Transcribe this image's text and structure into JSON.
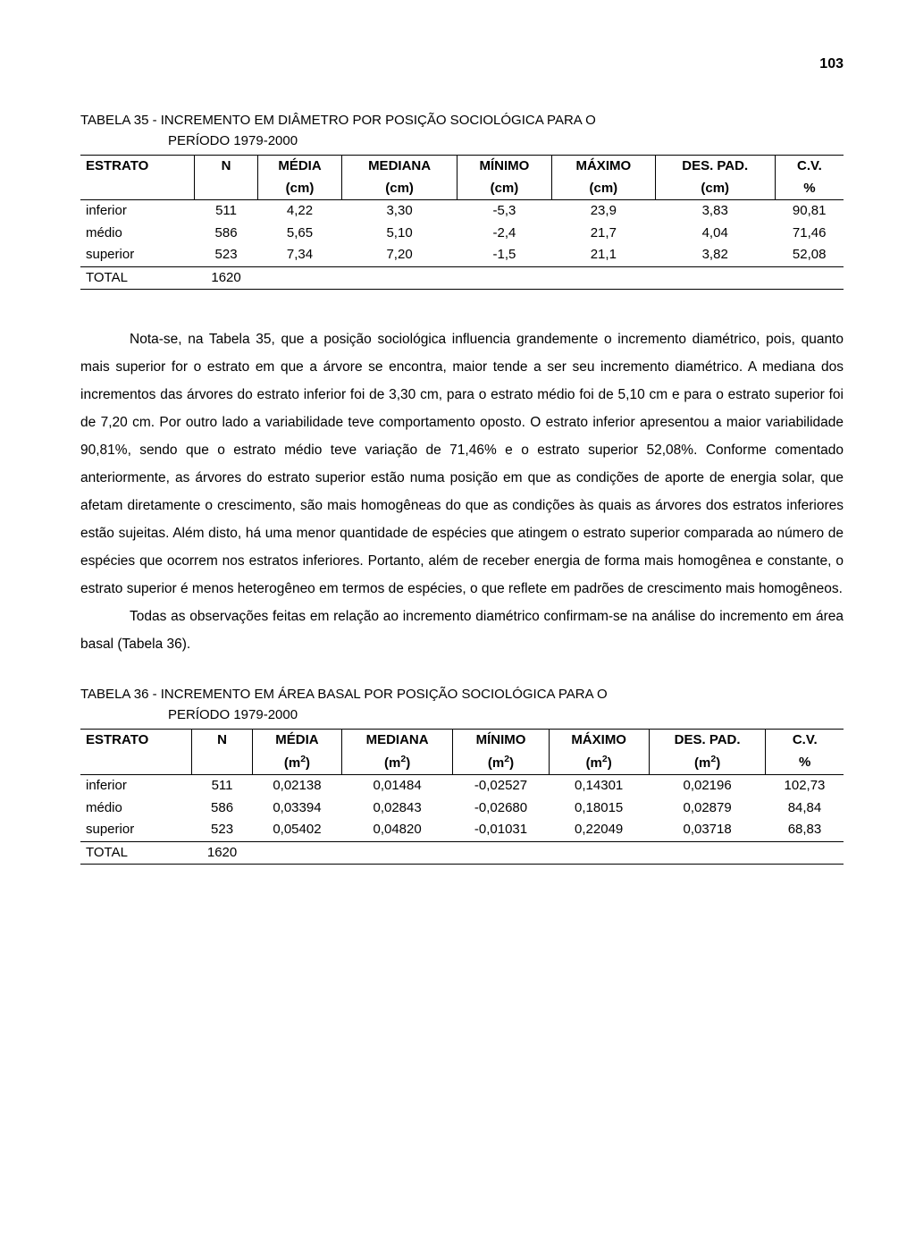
{
  "page_number": "103",
  "table35": {
    "title_label": "TABELA 35 - ",
    "title_text": "INCREMENTO EM DIÂMETRO POR POSIÇÃO SOCIOLÓGICA PARA O",
    "title_sub": "PERÍODO 1979-2000",
    "headers_row1": [
      "ESTRATO",
      "N",
      "MÉDIA",
      "MEDIANA",
      "MÍNIMO",
      "MÁXIMO",
      "DES. PAD.",
      "C.V."
    ],
    "headers_row2": [
      "",
      "",
      "(cm)",
      "(cm)",
      "(cm)",
      "(cm)",
      "(cm)",
      "%"
    ],
    "rows": [
      [
        "inferior",
        "511",
        "4,22",
        "3,30",
        "-5,3",
        "23,9",
        "3,83",
        "90,81"
      ],
      [
        "médio",
        "586",
        "5,65",
        "5,10",
        "-2,4",
        "21,7",
        "4,04",
        "71,46"
      ],
      [
        "superior",
        "523",
        "7,34",
        "7,20",
        "-1,5",
        "21,1",
        "3,82",
        "52,08"
      ]
    ],
    "total_label": "TOTAL",
    "total_n": "1620"
  },
  "paragraph1": "Nota-se, na Tabela 35, que a posição sociológica influencia grandemente o incremento diamétrico, pois, quanto mais superior for o estrato em que a árvore se encontra, maior tende a ser seu incremento diamétrico. A mediana dos incrementos das árvores do estrato inferior foi de 3,30 cm, para o estrato médio foi de 5,10 cm e para o estrato superior foi de 7,20 cm. Por outro lado a variabilidade teve comportamento oposto. O estrato inferior apresentou a maior variabilidade 90,81%, sendo que o estrato médio teve variação de 71,46% e o estrato superior 52,08%. Conforme comentado anteriormente, as árvores do estrato superior estão numa posição em que as condições de aporte de energia solar, que afetam diretamente o crescimento, são mais homogêneas do que as condições às quais as árvores dos estratos inferiores estão sujeitas. Além disto, há uma menor quantidade de espécies que atingem o estrato superior comparada ao número de espécies que ocorrem nos estratos inferiores. Portanto, além de receber energia de forma mais homogênea e constante, o estrato superior é menos heterogêneo em termos de espécies, o que reflete em padrões de crescimento mais homogêneos.",
  "paragraph2": "Todas as observações feitas em relação ao incremento diamétrico confirmam-se na análise do incremento em área basal (Tabela 36).",
  "table36": {
    "title_label": "TABELA 36 - ",
    "title_text": "INCREMENTO EM ÁREA BASAL POR POSIÇÃO SOCIOLÓGICA PARA O",
    "title_sub": "PERÍODO 1979-2000",
    "headers_row1": [
      "ESTRATO",
      "N",
      "MÉDIA",
      "MEDIANA",
      "MÍNIMO",
      "MÁXIMO",
      "DES. PAD.",
      "C.V."
    ],
    "unit": "(m²)",
    "rows": [
      [
        "inferior",
        "511",
        "0,02138",
        "0,01484",
        "-0,02527",
        "0,14301",
        "0,02196",
        "102,73"
      ],
      [
        "médio",
        "586",
        "0,03394",
        "0,02843",
        "-0,02680",
        "0,18015",
        "0,02879",
        "84,84"
      ],
      [
        "superior",
        "523",
        "0,05402",
        "0,04820",
        "-0,01031",
        "0,22049",
        "0,03718",
        "68,83"
      ]
    ],
    "total_label": "TOTAL",
    "total_n": "1620",
    "cv_unit": "%"
  }
}
